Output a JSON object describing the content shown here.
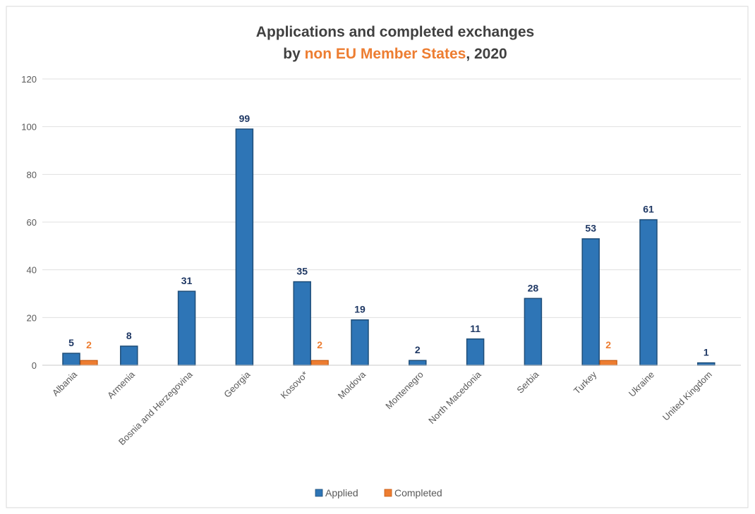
{
  "chart_data": {
    "type": "bar",
    "title_line1": "Applications and completed exchanges",
    "title_line2_prefix": "by ",
    "title_line2_highlight": "non EU Member States",
    "title_line2_suffix": ", 2020",
    "categories": [
      "Albania",
      "Armenia",
      "Bosnia and Herzegovina",
      "Georgia",
      "Kosovo*",
      "Moldova",
      "Montenegro",
      "North Macedonia",
      "Serbia",
      "Turkey",
      "Ukraine",
      "United Kingdom"
    ],
    "series": [
      {
        "name": "Applied",
        "color": "#2E75B6",
        "values": [
          5,
          8,
          31,
          99,
          35,
          19,
          2,
          11,
          28,
          53,
          61,
          1
        ]
      },
      {
        "name": "Completed",
        "color": "#ED7D31",
        "values": [
          2,
          null,
          null,
          null,
          2,
          null,
          null,
          null,
          null,
          2,
          null,
          null
        ]
      }
    ],
    "ylim": [
      0,
      120
    ],
    "yticks": [
      0,
      20,
      40,
      60,
      80,
      100,
      120
    ],
    "xlabel": "",
    "ylabel": "",
    "grid": true,
    "legend_position": "bottom"
  },
  "colors": {
    "title": "#404040",
    "highlight": "#ED7D31",
    "applied_label": "#1F3864",
    "completed_label": "#ED7D31",
    "axis_text": "#595959",
    "gridline": "#E0E0E0",
    "border": "#D9D9D9"
  }
}
